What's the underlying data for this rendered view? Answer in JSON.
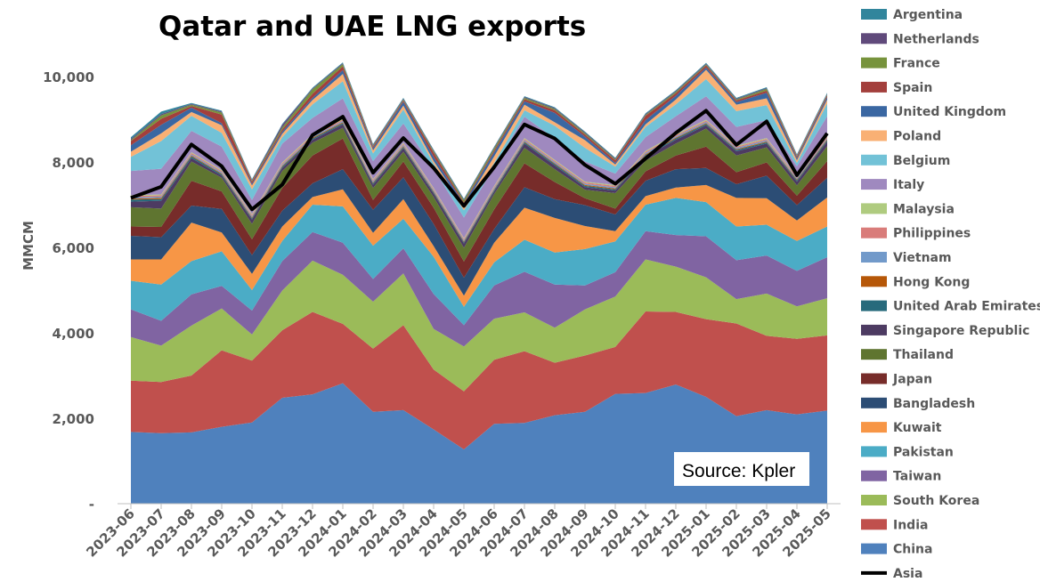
{
  "chart_data": {
    "type": "area",
    "stacked": true,
    "title": "Qatar and UAE LNG exports",
    "ylabel": "MMCM",
    "xlabel": "",
    "ylim": [
      0,
      11000
    ],
    "yticks": [
      0,
      2000,
      4000,
      6000,
      8000,
      10000
    ],
    "ytick_labels": [
      "-",
      "2,000",
      "4,000",
      "6,000",
      "8,000",
      "10,000"
    ],
    "legend_position": "right",
    "grid": false,
    "source": "Source: Kpler",
    "categories": [
      "2023-06",
      "2023-07",
      "2023-08",
      "2023-09",
      "2023-10",
      "2023-11",
      "2023-12",
      "2024-01",
      "2024-02",
      "2024-03",
      "2024-04",
      "2024-05",
      "2024-06",
      "2024-07",
      "2024-08",
      "2024-09",
      "2024-10",
      "2024-11",
      "2024-12",
      "2025-01",
      "2025-02",
      "2025-03",
      "2025-04",
      "2025-05"
    ],
    "series": [
      {
        "name": "China",
        "color": "#4F81BD",
        "values": [
          1680,
          1650,
          1670,
          1800,
          1900,
          2480,
          2560,
          2820,
          2150,
          2190,
          1740,
          1270,
          1870,
          1890,
          2070,
          2150,
          2570,
          2590,
          2790,
          2500,
          2050,
          2190,
          2090,
          2180
        ]
      },
      {
        "name": "India",
        "color": "#C0504D",
        "values": [
          1200,
          1200,
          1330,
          1790,
          1450,
          1580,
          1930,
          1390,
          1480,
          1990,
          1400,
          1360,
          1500,
          1680,
          1230,
          1320,
          1100,
          1910,
          1700,
          1820,
          2170,
          1740,
          1770,
          1760
        ]
      },
      {
        "name": "South Korea",
        "color": "#9BBB59",
        "values": [
          1020,
          850,
          1170,
          980,
          610,
          930,
          1200,
          1150,
          1100,
          1210,
          950,
          1050,
          960,
          910,
          820,
          1080,
          1180,
          1220,
          1060,
          980,
          570,
          990,
          760,
          870
        ]
      },
      {
        "name": "Taiwan",
        "color": "#8064A2",
        "values": [
          650,
          580,
          730,
          530,
          560,
          690,
          670,
          750,
          530,
          590,
          820,
          500,
          780,
          950,
          1010,
          560,
          570,
          660,
          740,
          960,
          910,
          890,
          830,
          960
        ]
      },
      {
        "name": "Pakistan",
        "color": "#4BACC6",
        "values": [
          670,
          850,
          780,
          810,
          480,
          470,
          640,
          850,
          780,
          690,
          870,
          430,
          540,
          750,
          750,
          850,
          720,
          620,
          870,
          800,
          790,
          720,
          700,
          720
        ]
      },
      {
        "name": "Kuwait",
        "color": "#F79646",
        "values": [
          500,
          590,
          900,
          440,
          380,
          340,
          180,
          400,
          300,
          460,
          250,
          260,
          460,
          750,
          810,
          540,
          240,
          200,
          240,
          400,
          670,
          620,
          480,
          680
        ]
      },
      {
        "name": "Bangladesh",
        "color": "#2C4D75",
        "values": [
          550,
          520,
          400,
          550,
          440,
          370,
          320,
          470,
          540,
          510,
          520,
          420,
          320,
          480,
          440,
          490,
          390,
          360,
          430,
          400,
          320,
          530,
          360,
          460
        ]
      },
      {
        "name": "Japan",
        "color": "#772C2A",
        "values": [
          220,
          240,
          580,
          410,
          370,
          530,
          650,
          720,
          230,
          370,
          380,
          380,
          460,
          560,
          400,
          160,
          140,
          220,
          320,
          500,
          280,
          310,
          220,
          390
        ]
      },
      {
        "name": "Thailand",
        "color": "#5F7530",
        "values": [
          450,
          430,
          450,
          320,
          360,
          400,
          300,
          250,
          280,
          230,
          250,
          320,
          360,
          360,
          300,
          200,
          360,
          250,
          280,
          420,
          390,
          350,
          240,
          350
        ]
      },
      {
        "name": "Singapore Republic",
        "color": "#4D3B62",
        "values": [
          130,
          180,
          80,
          50,
          100,
          70,
          70,
          80,
          80,
          80,
          80,
          100,
          60,
          100,
          90,
          60,
          60,
          100,
          90,
          80,
          100,
          90,
          90,
          110
        ]
      },
      {
        "name": "United Arab Emirates",
        "color": "#276A7C",
        "values": [
          50,
          40,
          40,
          30,
          30,
          30,
          30,
          30,
          30,
          30,
          30,
          30,
          30,
          30,
          30,
          30,
          30,
          30,
          30,
          30,
          30,
          30,
          30,
          30
        ]
      },
      {
        "name": "Hong Kong",
        "color": "#B65708",
        "values": [
          20,
          30,
          20,
          20,
          20,
          20,
          20,
          20,
          20,
          20,
          20,
          20,
          20,
          20,
          20,
          20,
          20,
          20,
          20,
          20,
          20,
          20,
          20,
          20
        ]
      },
      {
        "name": "Vietnam",
        "color": "#729ACA",
        "values": [
          30,
          30,
          30,
          30,
          30,
          30,
          30,
          30,
          30,
          30,
          30,
          30,
          30,
          30,
          30,
          30,
          30,
          30,
          30,
          30,
          30,
          30,
          30,
          30
        ]
      },
      {
        "name": "Philippines",
        "color": "#D97C7A",
        "values": [
          30,
          30,
          30,
          30,
          30,
          30,
          30,
          30,
          30,
          30,
          30,
          30,
          30,
          30,
          30,
          30,
          30,
          30,
          30,
          30,
          30,
          30,
          30,
          30
        ]
      },
      {
        "name": "Malaysia",
        "color": "#AFCB7F",
        "values": [
          20,
          20,
          20,
          20,
          20,
          20,
          20,
          20,
          20,
          20,
          20,
          20,
          20,
          20,
          20,
          20,
          20,
          20,
          20,
          20,
          20,
          20,
          20,
          20
        ]
      },
      {
        "name": "Italy",
        "color": "#9F89BF",
        "values": [
          570,
          600,
          500,
          550,
          330,
          440,
          380,
          480,
          420,
          450,
          450,
          480,
          440,
          500,
          500,
          470,
          270,
          320,
          420,
          550,
          440,
          420,
          230,
          460
        ]
      },
      {
        "name": "Belgium",
        "color": "#72C2D7",
        "values": [
          330,
          650,
          350,
          320,
          250,
          150,
          320,
          400,
          180,
          330,
          120,
          170,
          100,
          150,
          300,
          320,
          160,
          240,
          280,
          400,
          370,
          350,
          80,
          300
        ]
      },
      {
        "name": "Poland",
        "color": "#F9B074",
        "values": [
          120,
          180,
          90,
          180,
          90,
          80,
          100,
          170,
          70,
          90,
          60,
          90,
          150,
          130,
          80,
          180,
          50,
          60,
          110,
          220,
          150,
          160,
          60,
          90
        ]
      },
      {
        "name": "United Kingdom",
        "color": "#3A67A2",
        "values": [
          150,
          200,
          100,
          50,
          40,
          50,
          50,
          90,
          50,
          90,
          100,
          60,
          100,
          80,
          220,
          80,
          40,
          100,
          90,
          50,
          60,
          130,
          40,
          60
        ]
      },
      {
        "name": "Spain",
        "color": "#A33F3C",
        "values": [
          100,
          140,
          40,
          200,
          50,
          50,
          100,
          90,
          40,
          30,
          100,
          30,
          40,
          50,
          60,
          50,
          60,
          100,
          60,
          50,
          40,
          50,
          40,
          40
        ]
      },
      {
        "name": "France",
        "color": "#77933C",
        "values": [
          20,
          80,
          30,
          50,
          20,
          50,
          100,
          50,
          20,
          20,
          30,
          50,
          50,
          30,
          30,
          30,
          20,
          20,
          30,
          20,
          20,
          40,
          20,
          20
        ]
      },
      {
        "name": "Netherlands",
        "color": "#604A7B",
        "values": [
          30,
          30,
          20,
          20,
          20,
          60,
          20,
          20,
          20,
          20,
          20,
          20,
          20,
          20,
          20,
          20,
          20,
          20,
          20,
          20,
          20,
          20,
          20,
          20
        ]
      },
      {
        "name": "Argentina",
        "color": "#31859C",
        "values": [
          40,
          60,
          20,
          20,
          20,
          20,
          20,
          20,
          20,
          20,
          20,
          20,
          20,
          20,
          20,
          20,
          20,
          20,
          20,
          20,
          20,
          20,
          20,
          20
        ]
      }
    ],
    "line_series": {
      "name": "Asia",
      "color": "#000000",
      "values": [
        7160,
        7420,
        8410,
        7900,
        6890,
        7470,
        8630,
        9060,
        7750,
        8560,
        7860,
        6970,
        7880,
        8880,
        8550,
        7930,
        7490,
        8080,
        8680,
        9200,
        8400,
        8950,
        7690,
        8670
      ]
    },
    "legend_order": [
      "Argentina",
      "Netherlands",
      "France",
      "Spain",
      "United Kingdom",
      "Poland",
      "Belgium",
      "Italy",
      "Malaysia",
      "Philippines",
      "Vietnam",
      "Hong Kong",
      "United Arab Emirates",
      "Singapore Republic",
      "Thailand",
      "Japan",
      "Bangladesh",
      "Kuwait",
      "Pakistan",
      "Taiwan",
      "South Korea",
      "India",
      "China",
      "Asia"
    ]
  }
}
